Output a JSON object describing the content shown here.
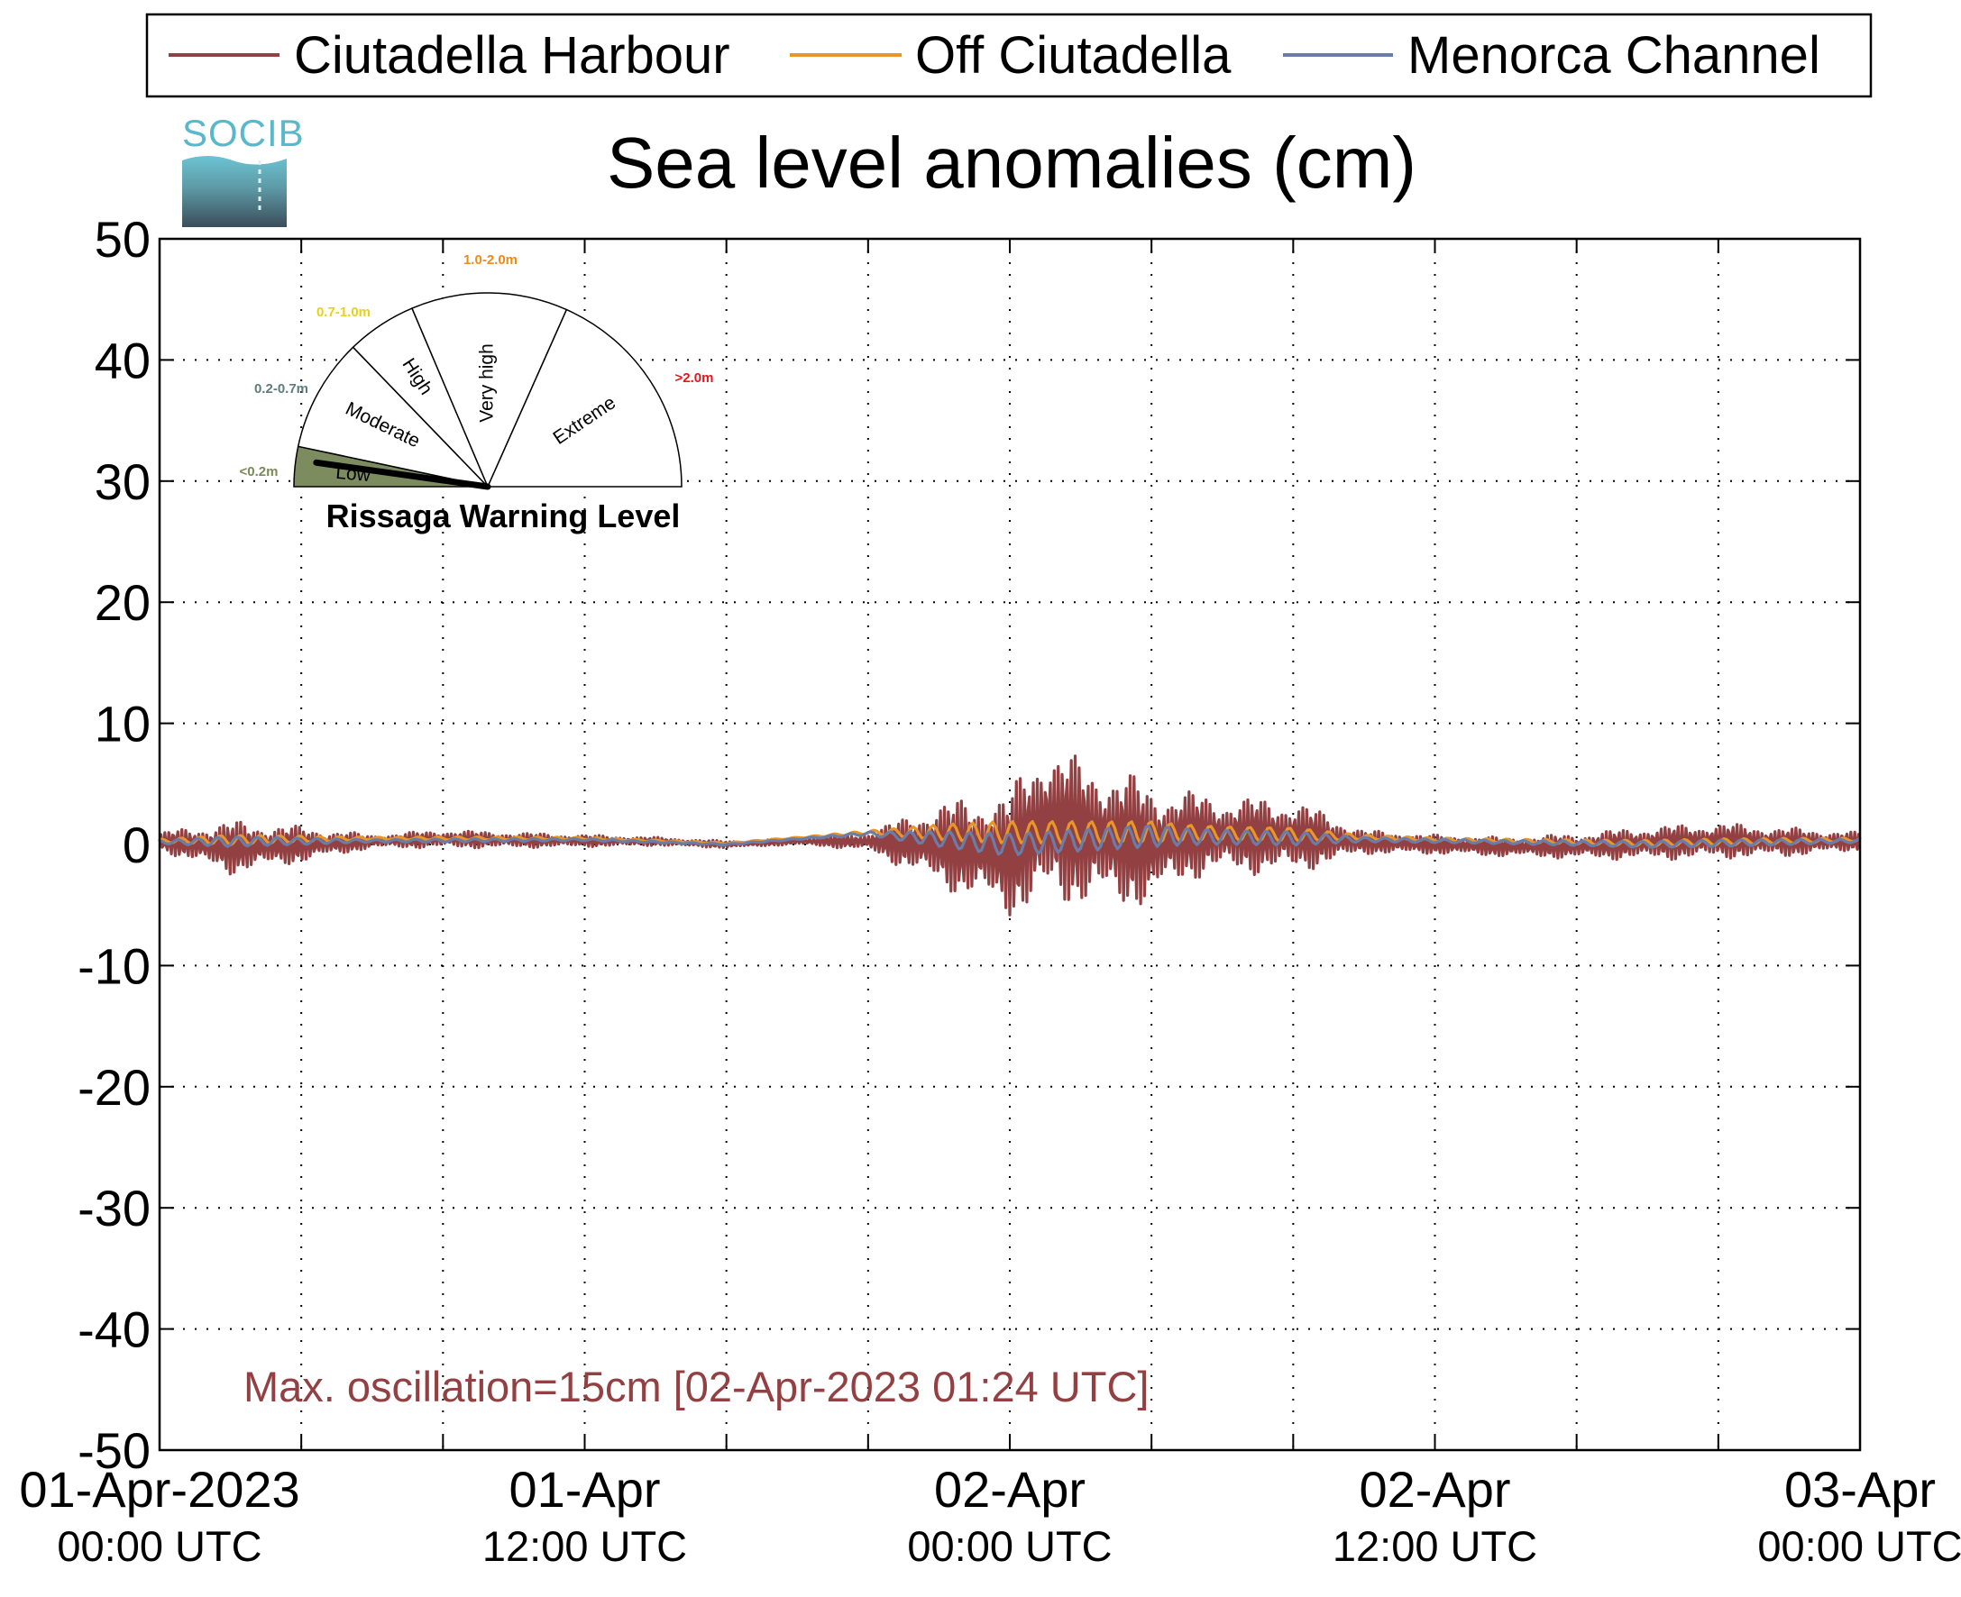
{
  "title": "Sea level anomalies (cm)",
  "logo_text": "SOCIB",
  "legend": [
    {
      "name": "Ciutadella Harbour",
      "color": "#934043"
    },
    {
      "name": "Off Ciutadella",
      "color": "#e8962a"
    },
    {
      "name": "Menorca Channel",
      "color": "#6a7da8"
    }
  ],
  "max_oscillation_text": "Max. oscillation=15cm [02-Apr-2023 01:24 UTC]",
  "gauge": {
    "title": "Rissaga Warning Level",
    "current_level": "Low",
    "segments": [
      {
        "label": "Low",
        "range": "<0.2m",
        "range_color": "#7a8a5a",
        "fill": "#7d8c5f",
        "active": true
      },
      {
        "label": "Moderate",
        "range": "0.2-0.7m",
        "range_color": "#5e7d7d",
        "fill": "none",
        "active": false
      },
      {
        "label": "High",
        "range": "0.7-1.0m",
        "range_color": "#e6d21a",
        "fill": "none",
        "active": false
      },
      {
        "label": "Very high",
        "range": "1.0-2.0m",
        "range_color": "#f08a1c",
        "fill": "none",
        "active": false
      },
      {
        "label": "Extreme",
        "range": ">2.0m",
        "range_color": "#e8141c",
        "fill": "none",
        "active": false
      }
    ]
  },
  "chart_data": {
    "type": "line",
    "title": "Sea level anomalies (cm)",
    "xlabel": "",
    "ylabel": "",
    "ylim": [
      -50,
      50
    ],
    "yticks": [
      -50,
      -40,
      -30,
      -20,
      -10,
      0,
      10,
      20,
      30,
      40,
      50
    ],
    "xlim": [
      "2023-04-01 00:00",
      "2023-04-03 00:00"
    ],
    "x_tick_labels": [
      {
        "date": "01-Apr-2023",
        "time": "00:00 UTC"
      },
      {
        "date": "01-Apr",
        "time": "12:00 UTC"
      },
      {
        "date": "02-Apr",
        "time": "00:00 UTC"
      },
      {
        "date": "02-Apr",
        "time": "12:00 UTC"
      },
      {
        "date": "03-Apr",
        "time": "00:00 UTC"
      }
    ],
    "grid": true,
    "legend_position": "top",
    "series": [
      {
        "name": "Ciutadella Harbour",
        "color": "#934043",
        "x": [
          "2023-04-01 00:00",
          "2023-04-01 02:00",
          "2023-04-01 04:00",
          "2023-04-01 06:00",
          "2023-04-01 08:00",
          "2023-04-01 10:00",
          "2023-04-01 12:00",
          "2023-04-01 14:00",
          "2023-04-01 16:00",
          "2023-04-01 18:00",
          "2023-04-01 20:00",
          "2023-04-01 22:00",
          "2023-04-02 00:00",
          "2023-04-02 01:00",
          "2023-04-02 02:00",
          "2023-04-02 03:00",
          "2023-04-02 04:00",
          "2023-04-02 05:00",
          "2023-04-02 06:00",
          "2023-04-02 08:00",
          "2023-04-02 10:00",
          "2023-04-02 12:00",
          "2023-04-02 14:00",
          "2023-04-02 16:00",
          "2023-04-02 18:00",
          "2023-04-02 20:00",
          "2023-04-02 22:00",
          "2023-04-03 00:00"
        ],
        "envelope_max": [
          1.0,
          2.0,
          1.5,
          0.8,
          1.2,
          1.0,
          0.8,
          0.6,
          0.3,
          0.5,
          1.0,
          3.5,
          4.5,
          9.0,
          7.0,
          6.5,
          5.0,
          4.5,
          4.0,
          3.8,
          1.2,
          0.8,
          0.6,
          0.9,
          1.5,
          1.8,
          1.4,
          1.0
        ],
        "envelope_min": [
          -0.5,
          -2.5,
          -1.5,
          -0.3,
          -0.3,
          -0.3,
          -0.2,
          -0.1,
          -0.3,
          0.0,
          -0.5,
          -3.5,
          -6.0,
          -5.5,
          -5.0,
          -5.5,
          -5.0,
          -3.0,
          -2.5,
          -2.5,
          -0.8,
          -0.8,
          -1.0,
          -1.2,
          -1.3,
          -1.2,
          -1.0,
          -0.5
        ]
      },
      {
        "name": "Off Ciutadella",
        "color": "#e8962a",
        "x": [
          "2023-04-01 00:00",
          "2023-04-01 06:00",
          "2023-04-01 12:00",
          "2023-04-01 16:00",
          "2023-04-01 20:00",
          "2023-04-02 00:00",
          "2023-04-02 04:00",
          "2023-04-02 08:00",
          "2023-04-02 12:00",
          "2023-04-02 18:00",
          "2023-04-03 00:00"
        ],
        "y": [
          0.3,
          0.5,
          0.5,
          0.1,
          1.0,
          1.0,
          1.0,
          0.8,
          0.4,
          0.1,
          0.4
        ]
      },
      {
        "name": "Menorca Channel",
        "color": "#6a7da8",
        "x": [
          "2023-04-01 00:00",
          "2023-04-01 06:00",
          "2023-04-01 12:00",
          "2023-04-01 16:00",
          "2023-04-01 20:00",
          "2023-04-02 00:00",
          "2023-04-02 04:00",
          "2023-04-02 08:00",
          "2023-04-02 12:00",
          "2023-04-02 18:00",
          "2023-04-03 00:00"
        ],
        "y": [
          0.2,
          0.3,
          0.4,
          0.0,
          0.9,
          0.0,
          0.7,
          0.5,
          0.3,
          0.0,
          0.3
        ]
      }
    ]
  }
}
